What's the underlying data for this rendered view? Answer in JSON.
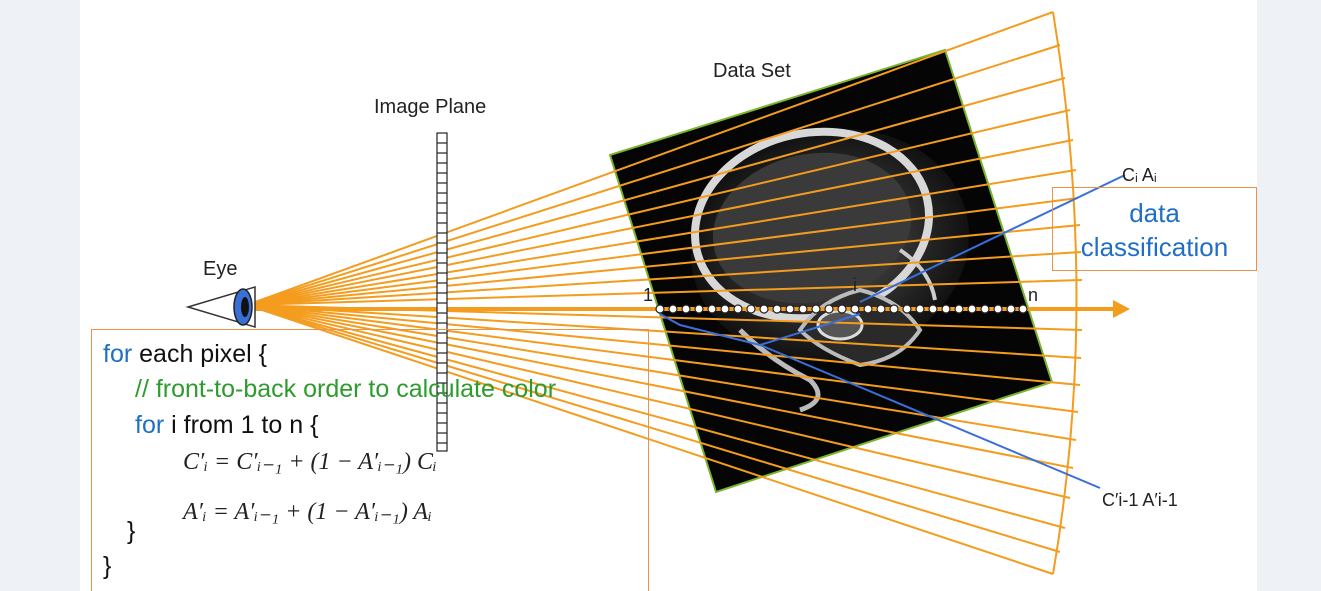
{
  "labels": {
    "data_set": "Data Set",
    "image_plane": "Image Plane",
    "eye": "Eye",
    "sample_first": "1",
    "sample_i": "i",
    "sample_last": "n",
    "ci_ai": "Cᵢ Aᵢ",
    "ci1_ai1": "C′i-1 A′i-1"
  },
  "classification": {
    "line1": "data",
    "line2": "classification"
  },
  "code": {
    "line1_kw": "for",
    "line1_rest": " each pixel {",
    "line2_comment": "// front-to-back order to calculate color",
    "line3_kw": "for",
    "line3_rest": " i from 1 to n {",
    "eq1": "C′ᵢ = C′ᵢ₋₁ + (1 − A′ᵢ₋₁) Cᵢ",
    "eq2": "A′ᵢ = A′ᵢ₋₁ + (1 − A′ᵢ₋₁) Aᵢ",
    "close_inner": "}",
    "close_outer": "}"
  },
  "colors": {
    "ray": "#f39c1e",
    "pointer": "#3a6fd8",
    "box_border": "#e8944a",
    "dataset_border": "#7ab32e",
    "keyword": "#1f6fc4",
    "comment": "#2e9b2e"
  }
}
